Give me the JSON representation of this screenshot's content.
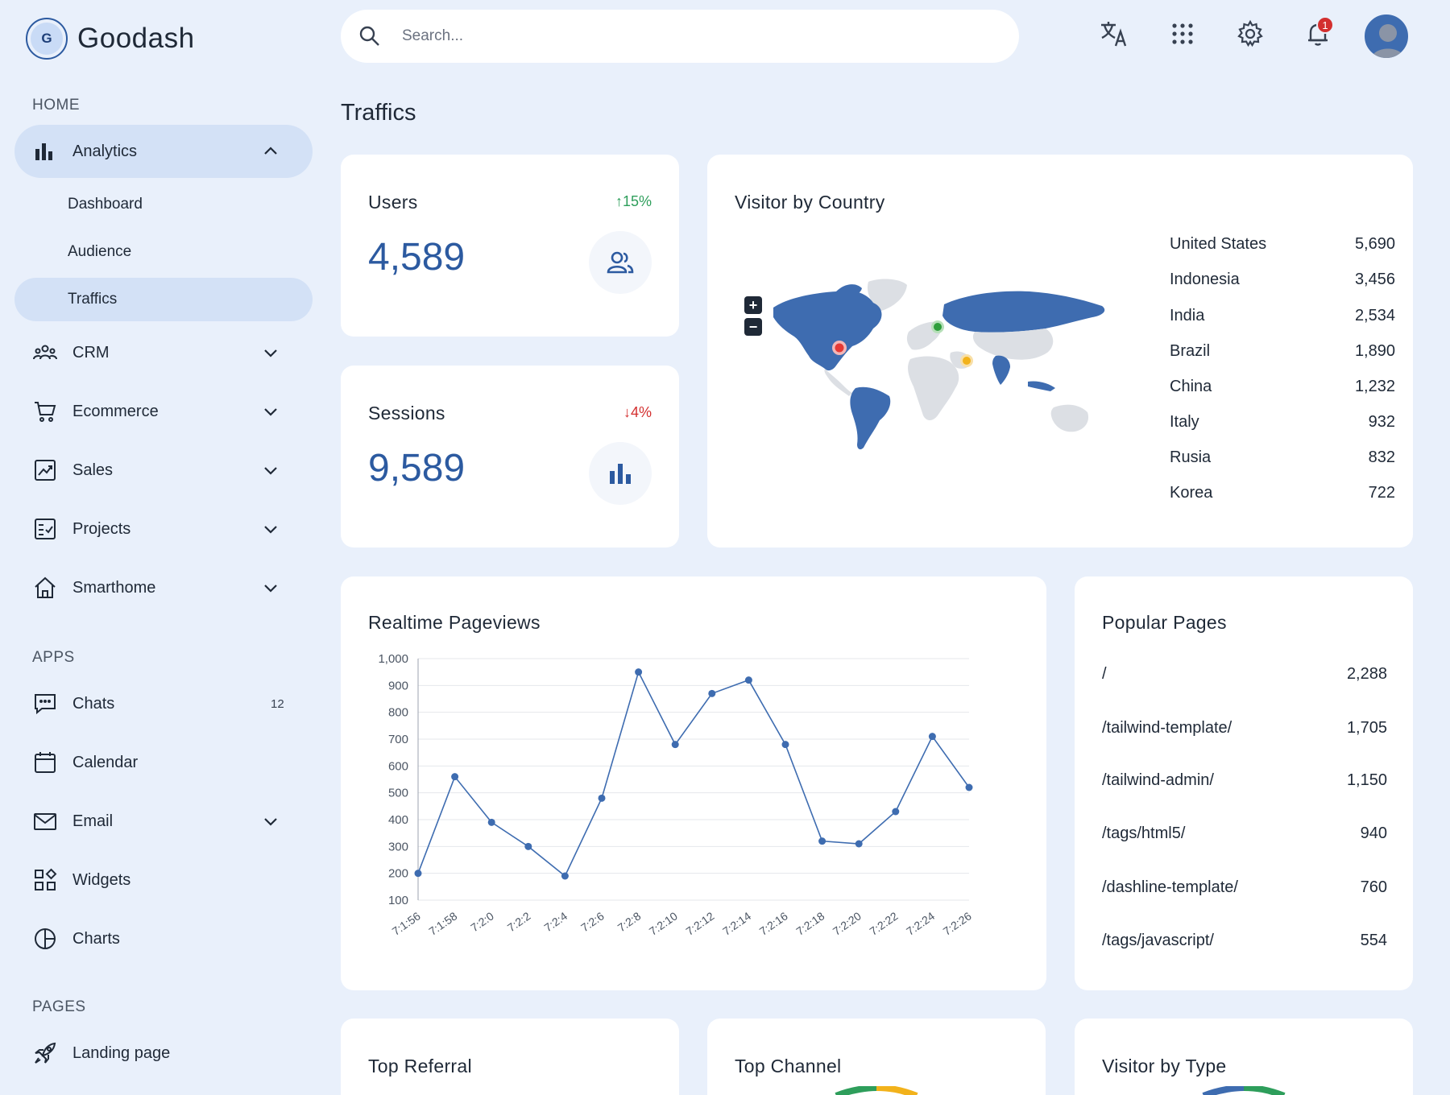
{
  "brand": {
    "logo_letter": "G",
    "name": "Goodash"
  },
  "sidebar": {
    "sections": {
      "home": "HOME",
      "apps": "APPS",
      "pages": "PAGES"
    },
    "analytics": {
      "label": "Analytics",
      "children": [
        "Dashboard",
        "Audience",
        "Traffics"
      ]
    },
    "items": [
      {
        "label": "CRM",
        "icon": "people-group-icon"
      },
      {
        "label": "Ecommerce",
        "icon": "cart-icon"
      },
      {
        "label": "Sales",
        "icon": "sales-chart-icon"
      },
      {
        "label": "Projects",
        "icon": "checklist-icon"
      },
      {
        "label": "Smarthome",
        "icon": "home-icon"
      }
    ],
    "apps": [
      {
        "label": "Chats",
        "icon": "chat-icon",
        "badge": "12"
      },
      {
        "label": "Calendar",
        "icon": "calendar-icon"
      },
      {
        "label": "Email",
        "icon": "email-icon"
      },
      {
        "label": "Widgets",
        "icon": "widgets-icon"
      },
      {
        "label": "Charts",
        "icon": "pie-chart-icon"
      }
    ],
    "pages": [
      {
        "label": "Landing page",
        "icon": "rocket-icon"
      }
    ]
  },
  "topbar": {
    "search_placeholder": "Search...",
    "notifications_count": "1"
  },
  "page_title": "Traffics",
  "stats": {
    "users": {
      "title": "Users",
      "value": "4,589",
      "change": "15%",
      "direction": "up"
    },
    "sessions": {
      "title": "Sessions",
      "value": "9,589",
      "change": "4%",
      "direction": "down"
    }
  },
  "visitor_by_country": {
    "title": "Visitor by Country",
    "rows": [
      {
        "country": "United States",
        "value": "5,690"
      },
      {
        "country": "Indonesia",
        "value": "3,456"
      },
      {
        "country": "India",
        "value": "2,534"
      },
      {
        "country": "Brazil",
        "value": "1,890"
      },
      {
        "country": "China",
        "value": "1,232"
      },
      {
        "country": "Italy",
        "value": "932"
      },
      {
        "country": "Rusia",
        "value": "832"
      },
      {
        "country": "Korea",
        "value": "722"
      }
    ],
    "zoom_in": "+",
    "zoom_out": "−"
  },
  "realtime": {
    "title": "Realtime Pageviews"
  },
  "chart_data": {
    "type": "line",
    "title": "Realtime Pageviews",
    "categories": [
      "7:1:56",
      "7:1:58",
      "7:2:0",
      "7:2:2",
      "7:2:4",
      "7:2:6",
      "7:2:8",
      "7:2:10",
      "7:2:12",
      "7:2:14",
      "7:2:16",
      "7:2:18",
      "7:2:20",
      "7:2:22",
      "7:2:24",
      "7:2:26"
    ],
    "values": [
      200,
      560,
      390,
      300,
      190,
      480,
      950,
      680,
      870,
      920,
      680,
      320,
      310,
      430,
      710,
      520
    ],
    "yticks": [
      1000,
      900,
      800,
      700,
      600,
      500,
      400,
      300,
      200,
      100
    ],
    "ylim": [
      100,
      1000
    ],
    "grid": true,
    "color": "#3e6cb0"
  },
  "popular_pages": {
    "title": "Popular Pages",
    "rows": [
      {
        "path": "/",
        "value": "2,288"
      },
      {
        "path": "/tailwind-template/",
        "value": "1,705"
      },
      {
        "path": "/tailwind-admin/",
        "value": "1,150"
      },
      {
        "path": "/tags/html5/",
        "value": "940"
      },
      {
        "path": "/dashline-template/",
        "value": "760"
      },
      {
        "path": "/tags/javascript/",
        "value": "554"
      }
    ]
  },
  "bottom_cards": {
    "top_referral": "Top Referral",
    "top_channel": "Top Channel",
    "visitor_by_type": "Visitor by Type"
  },
  "colors": {
    "accent": "#2c5aa0",
    "map_fill": "#3e6cb0",
    "up": "#2e9e5b",
    "down": "#d32f2f"
  }
}
